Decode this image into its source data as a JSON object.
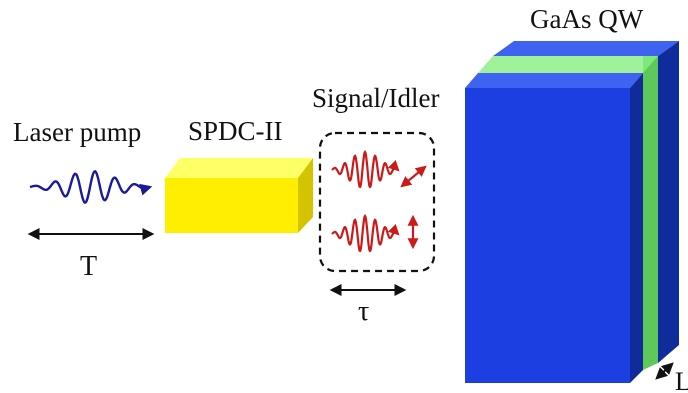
{
  "labels": {
    "laser_pump": "Laser pump",
    "pump_duration": "T",
    "crystal": "SPDC-II",
    "signal_idler": "Signal/Idler",
    "delay": "τ",
    "sample": "GaAs QW",
    "thickness": "L"
  },
  "colors": {
    "pump_pulse": "#1a1a9a",
    "photon_pulse": "#cc1a1a",
    "crystal_yellow": "#ffee00",
    "qw_blue": "#1b3fe0",
    "qw_green": "#7fe87a"
  },
  "icons": {
    "pump_pulse": "wave-packet-icon",
    "signal_pulse": "wave-packet-icon",
    "idler_pulse": "wave-packet-icon",
    "signal_polarization": "diagonal-double-arrow-icon",
    "idler_polarization": "vertical-double-arrow-icon",
    "thickness_marker": "diagonal-double-arrow-icon"
  }
}
